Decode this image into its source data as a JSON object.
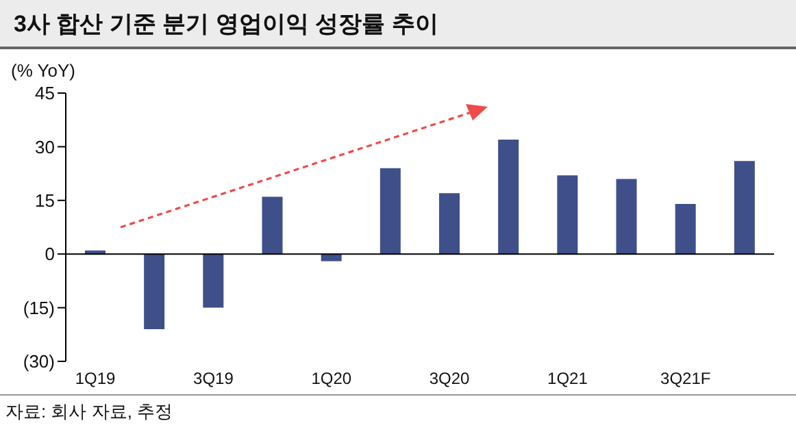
{
  "chart_data": {
    "type": "bar",
    "title": "3사 합산 기준 분기 영업이익 성장률 추이",
    "ylabel": "(% YoY)",
    "categories": [
      "1Q19",
      null,
      "3Q19",
      null,
      "1Q20",
      null,
      "3Q20",
      null,
      "1Q21",
      null,
      "3Q21F",
      null
    ],
    "values": [
      1,
      -21,
      -15,
      16,
      -2,
      24,
      17,
      32,
      22,
      21,
      14,
      26
    ],
    "color": "#3f4f8a",
    "ylim": [
      -30,
      45
    ],
    "yticks": [
      {
        "value": -30,
        "label": "(30)"
      },
      {
        "value": -15,
        "label": "(15)"
      },
      0,
      15,
      30,
      45
    ],
    "annotations": [
      "자료: 회사 자료, 추정"
    ]
  }
}
